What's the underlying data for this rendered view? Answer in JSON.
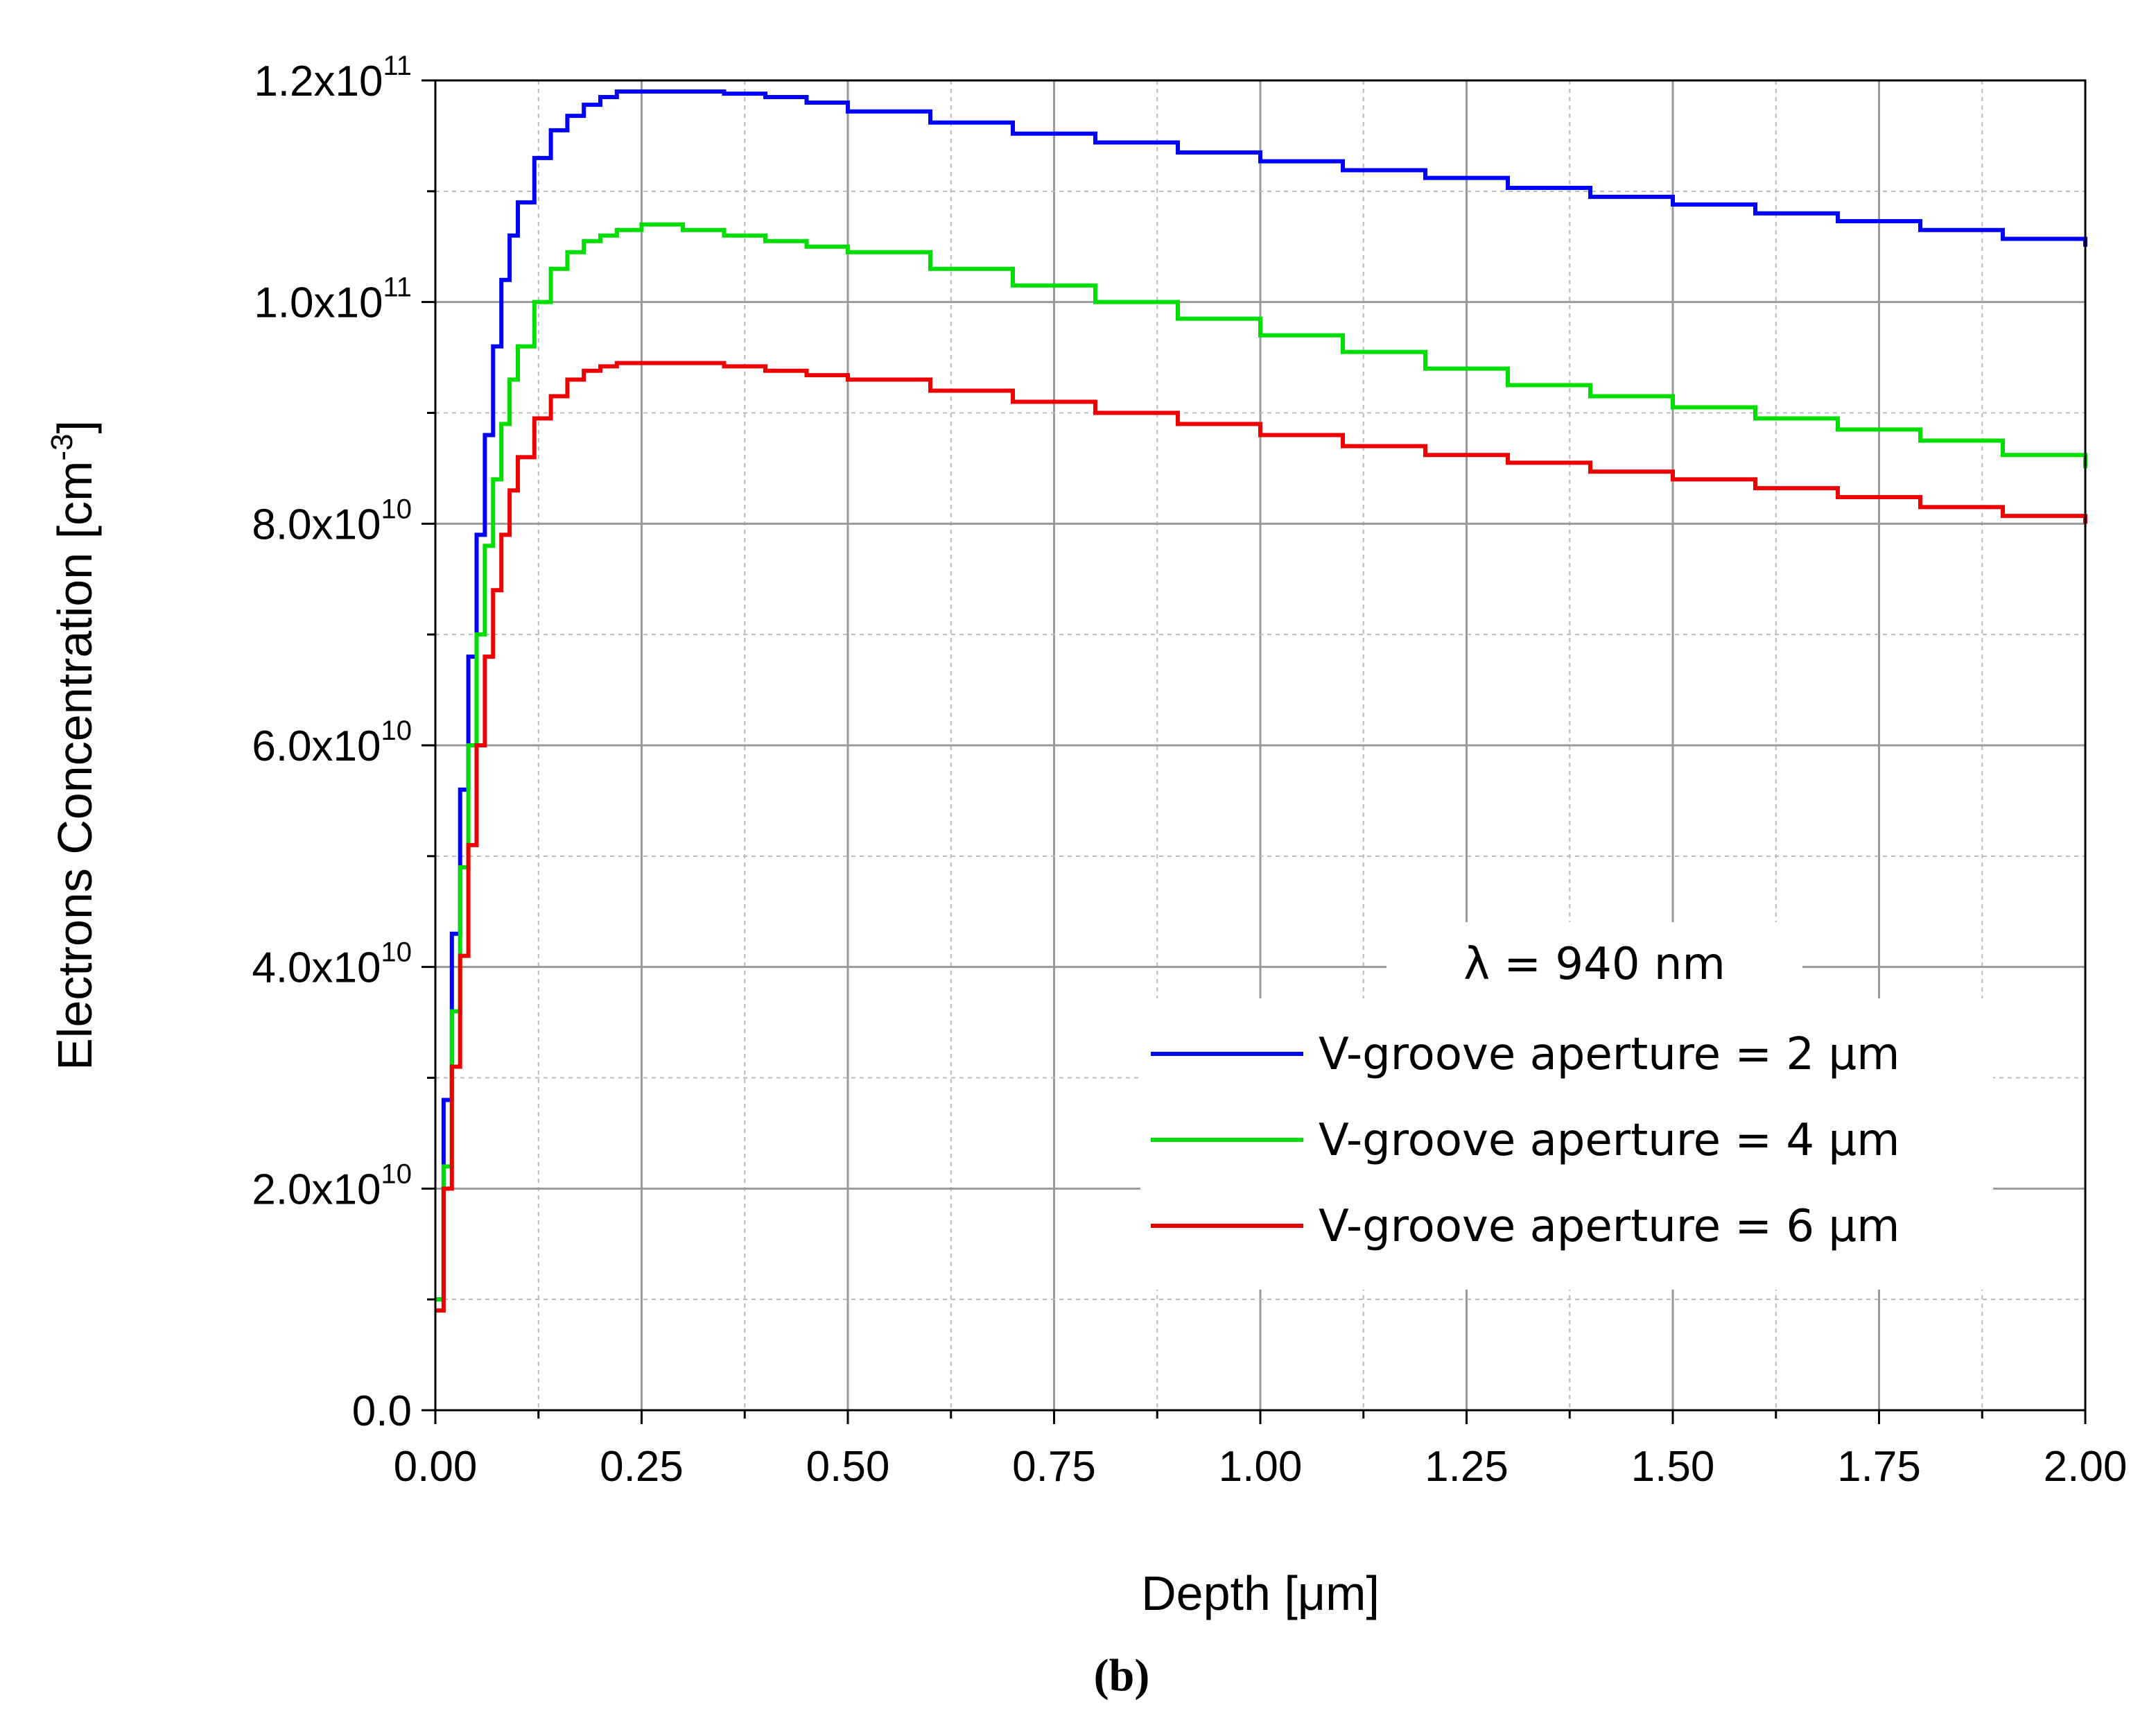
{
  "chart_data": {
    "type": "line",
    "caption": "(b)",
    "xlabel": "Depth [μm]",
    "ylabel": {
      "main": "Electrons Concentration [cm",
      "sup": "-3",
      "end": "]"
    },
    "xlim": [
      0,
      2.0
    ],
    "ylim": [
      0,
      120000000000.0
    ],
    "grid": true,
    "x_ticks": [
      "0.00",
      "0.25",
      "0.50",
      "0.75",
      "1.00",
      "1.25",
      "1.50",
      "1.75",
      "2.00"
    ],
    "y_ticks": [
      {
        "value": 0,
        "label": "0.0",
        "exp": ""
      },
      {
        "value": 20000000000.0,
        "label": "2.0x10",
        "exp": "10"
      },
      {
        "value": 40000000000.0,
        "label": "4.0x10",
        "exp": "10"
      },
      {
        "value": 60000000000.0,
        "label": "6.0x10",
        "exp": "10"
      },
      {
        "value": 80000000000.0,
        "label": "8.0x10",
        "exp": "10"
      },
      {
        "value": 100000000000.0,
        "label": "1.0x10",
        "exp": "11"
      },
      {
        "value": 120000000000.0,
        "label": "1.2x10",
        "exp": "11"
      }
    ],
    "legend": {
      "title": "λ = 940 nm",
      "position": "lower-right"
    },
    "series": [
      {
        "name": "V-groove aperture = 2 μm",
        "color": "#0000ff",
        "x": [
          0.0,
          0.01,
          0.02,
          0.03,
          0.04,
          0.05,
          0.06,
          0.07,
          0.08,
          0.09,
          0.1,
          0.12,
          0.14,
          0.16,
          0.18,
          0.2,
          0.22,
          0.25,
          0.3,
          0.35,
          0.4,
          0.45,
          0.5,
          0.6,
          0.7,
          0.8,
          0.9,
          1.0,
          1.1,
          1.2,
          1.3,
          1.4,
          1.5,
          1.6,
          1.7,
          1.8,
          1.9,
          2.0
        ],
        "y": [
          10000000000.0,
          28000000000.0,
          43000000000.0,
          56000000000.0,
          68000000000.0,
          79000000000.0,
          88000000000.0,
          96000000000.0,
          102000000000.0,
          106000000000.0,
          109000000000.0,
          113000000000.0,
          115500000000.0,
          116800000000.0,
          117800000000.0,
          118500000000.0,
          119000000000.0,
          119000000000.0,
          119000000000.0,
          118800000000.0,
          118500000000.0,
          118000000000.0,
          117200000000.0,
          116200000000.0,
          115200000000.0,
          114400000000.0,
          113500000000.0,
          112700000000.0,
          111900000000.0,
          111200000000.0,
          110300000000.0,
          109500000000.0,
          108800000000.0,
          108000000000.0,
          107300000000.0,
          106500000000.0,
          105700000000.0,
          105000000000.0
        ]
      },
      {
        "name": "V-groove aperture = 4 μm",
        "color": "#00dd00",
        "x": [
          0.0,
          0.01,
          0.02,
          0.03,
          0.04,
          0.05,
          0.06,
          0.07,
          0.08,
          0.09,
          0.1,
          0.12,
          0.14,
          0.16,
          0.18,
          0.2,
          0.22,
          0.25,
          0.3,
          0.35,
          0.4,
          0.45,
          0.5,
          0.6,
          0.7,
          0.8,
          0.9,
          1.0,
          1.1,
          1.2,
          1.3,
          1.4,
          1.5,
          1.6,
          1.7,
          1.8,
          1.9,
          2.0
        ],
        "y": [
          10000000000.0,
          22000000000.0,
          36000000000.0,
          49000000000.0,
          60000000000.0,
          70000000000.0,
          78000000000.0,
          84000000000.0,
          89000000000.0,
          93000000000.0,
          96000000000.0,
          100000000000.0,
          103000000000.0,
          104500000000.0,
          105500000000.0,
          106000000000.0,
          106500000000.0,
          107000000000.0,
          106500000000.0,
          106000000000.0,
          105500000000.0,
          105000000000.0,
          104500000000.0,
          103000000000.0,
          101500000000.0,
          100000000000.0,
          98500000000.0,
          97000000000.0,
          95500000000.0,
          94000000000.0,
          92500000000.0,
          91500000000.0,
          90500000000.0,
          89500000000.0,
          88500000000.0,
          87500000000.0,
          86200000000.0,
          85000000000.0
        ]
      },
      {
        "name": "V-groove aperture = 6 μm",
        "color": "#ee0000",
        "x": [
          0.0,
          0.01,
          0.02,
          0.03,
          0.04,
          0.05,
          0.06,
          0.07,
          0.08,
          0.09,
          0.1,
          0.12,
          0.14,
          0.16,
          0.18,
          0.2,
          0.22,
          0.25,
          0.3,
          0.35,
          0.4,
          0.45,
          0.5,
          0.6,
          0.7,
          0.8,
          0.9,
          1.0,
          1.1,
          1.2,
          1.3,
          1.4,
          1.5,
          1.6,
          1.7,
          1.8,
          1.9,
          2.0
        ],
        "y": [
          9000000000.0,
          20000000000.0,
          31000000000.0,
          41000000000.0,
          51000000000.0,
          60000000000.0,
          68000000000.0,
          74000000000.0,
          79000000000.0,
          83000000000.0,
          86000000000.0,
          89500000000.0,
          91500000000.0,
          93000000000.0,
          93800000000.0,
          94200000000.0,
          94500000000.0,
          94500000000.0,
          94500000000.0,
          94200000000.0,
          93800000000.0,
          93400000000.0,
          93000000000.0,
          92000000000.0,
          91000000000.0,
          90000000000.0,
          89000000000.0,
          88000000000.0,
          87000000000.0,
          86200000000.0,
          85500000000.0,
          84700000000.0,
          84000000000.0,
          83200000000.0,
          82400000000.0,
          81500000000.0,
          80700000000.0,
          80000000000.0
        ]
      }
    ]
  }
}
